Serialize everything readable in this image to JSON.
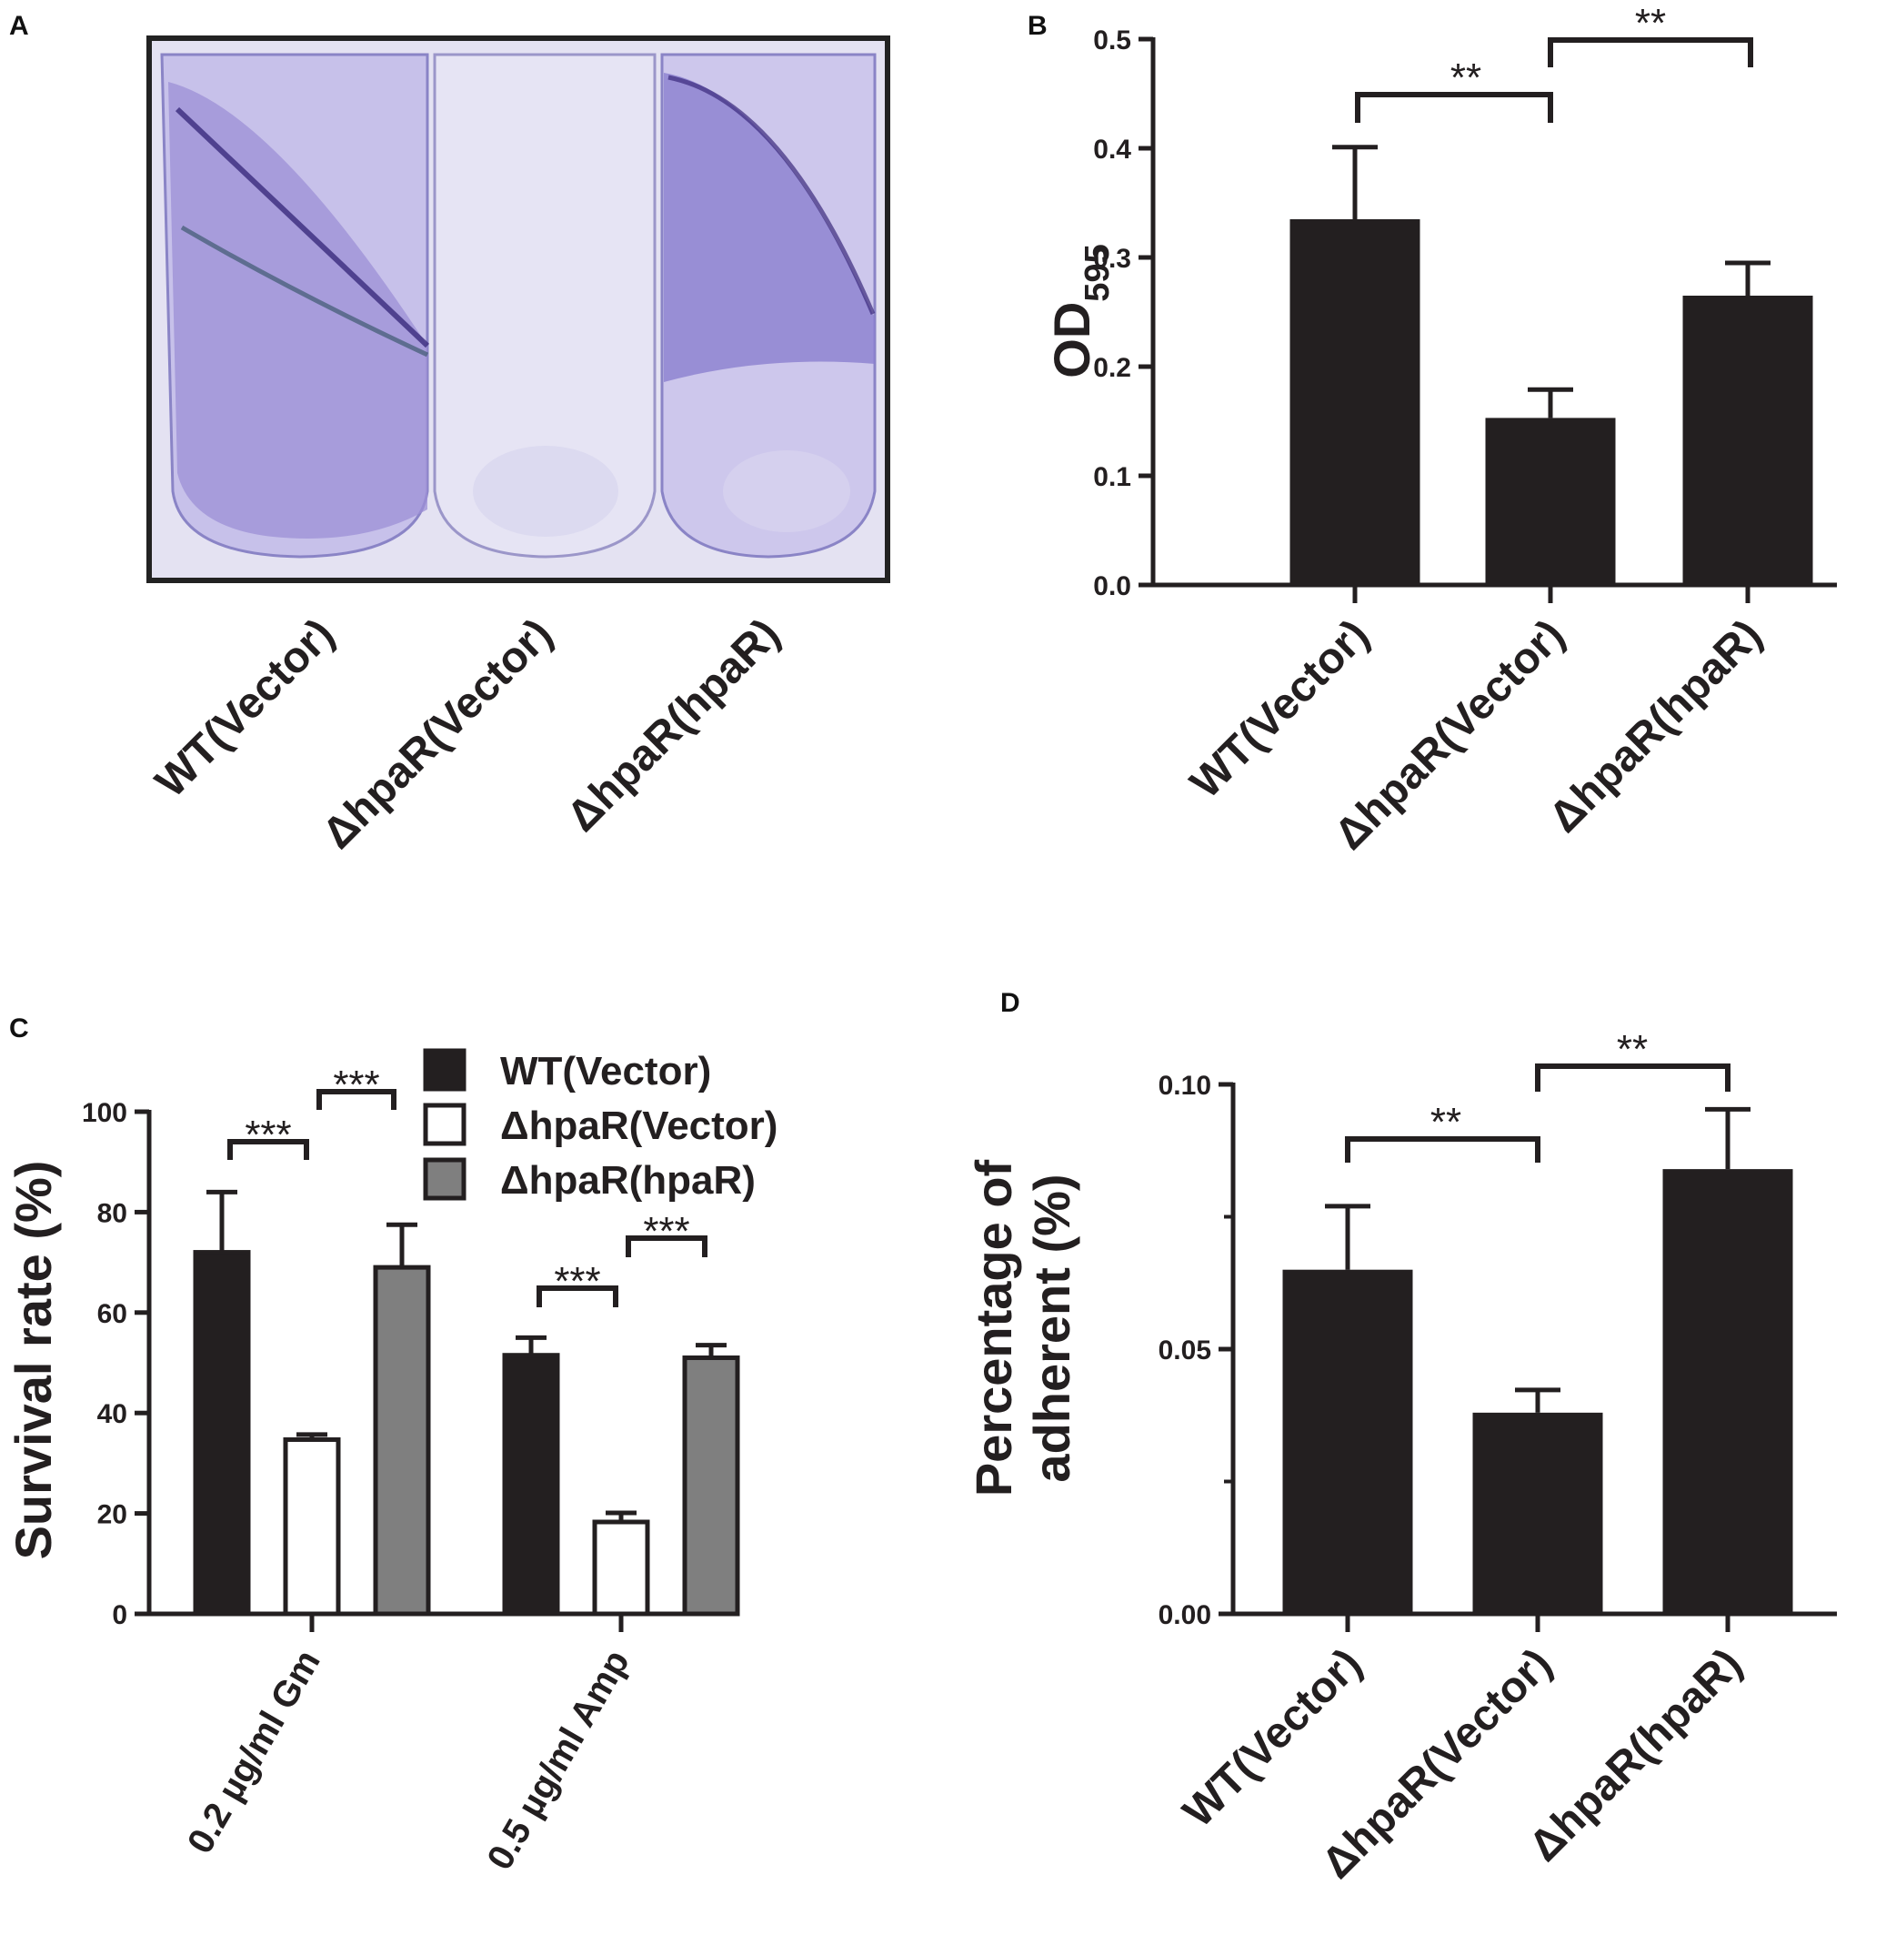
{
  "panels": {
    "a": {
      "letter": "A",
      "photo_labels": [
        "WT(Vector)",
        "ΔhpaR(Vector)",
        "ΔhpaR(hpaR)"
      ]
    },
    "b": {
      "letter": "B",
      "ylabel_main": "OD",
      "ylabel_sub": "595",
      "star_left": "**",
      "star_right": "**"
    },
    "c": {
      "letter": "C",
      "ylabel": "Survival rate (%)",
      "stars": [
        "***",
        "***",
        "***",
        "***"
      ]
    },
    "d": {
      "letter": "D",
      "ylabel_line1": "Percentage of",
      "ylabel_line2": "adherent (%)",
      "star_left": "**",
      "star_right": "**"
    }
  },
  "chart_data": [
    {
      "id": "B",
      "type": "bar",
      "categories": [
        "WT(Vector)",
        "ΔhpaR(Vector)",
        "ΔhpaR(hpaR)"
      ],
      "values": [
        0.335,
        0.153,
        0.265
      ],
      "errors": [
        0.066,
        0.026,
        0.03
      ],
      "ylabel": "OD595",
      "ylim": [
        0,
        0.5
      ],
      "yticks": [
        "0.0",
        "0.1",
        "0.2",
        "0.3",
        "0.4",
        "0.5"
      ],
      "colors": [
        "#231f20",
        "#231f20",
        "#231f20"
      ]
    },
    {
      "id": "C",
      "type": "bar",
      "categories": [
        "0.2 µg/ml Gm",
        "0.5 µg/ml Amp"
      ],
      "series": [
        {
          "name": "WT(Vector)",
          "values": [
            72,
            51.5
          ],
          "errors": [
            12,
            3.5
          ],
          "color": "#231f20"
        },
        {
          "name": "ΔhpaR(Vector)",
          "values": [
            34.7,
            18.3
          ],
          "errors": [
            1,
            1.8
          ],
          "color": "#ffffff"
        },
        {
          "name": "ΔhpaR(hpaR)",
          "values": [
            69,
            51
          ],
          "errors": [
            8.5,
            2.5
          ],
          "color": "#7f7f7f"
        }
      ],
      "ylabel": "Survival rate (%)",
      "ylim": [
        0,
        100
      ],
      "yticks": [
        "0",
        "20",
        "40",
        "60",
        "80",
        "100"
      ],
      "legend": "top-right"
    },
    {
      "id": "D",
      "type": "bar",
      "categories": [
        "WT(Vector)",
        "ΔhpaR(Vector)",
        "ΔhpaR(hpaR)"
      ],
      "values": [
        0.065,
        0.038,
        0.084
      ],
      "errors": [
        0.012,
        0.0043,
        0.0113
      ],
      "ylabel": "Percentage of adherent (%)",
      "ylim": [
        0,
        0.1
      ],
      "yticks": [
        "0.00",
        "0.05",
        "0.10"
      ],
      "colors": [
        "#231f20",
        "#231f20",
        "#231f20"
      ]
    }
  ]
}
